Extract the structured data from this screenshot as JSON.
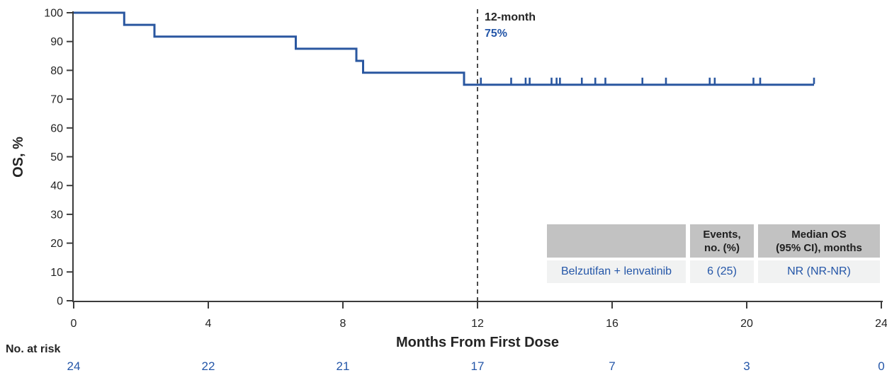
{
  "colors": {
    "line_blue": "#2a57a0",
    "text_blue": "#2456a8",
    "axis_gray": "#3c3c3c",
    "table_header_bg": "#c2c2c2",
    "table_row_bg": "#f1f2f2"
  },
  "chart_data": {
    "type": "line",
    "subtype": "kaplan-meier-step",
    "title": "",
    "xlabel": "Months From First Dose",
    "ylabel": "OS, %",
    "xlim": [
      0,
      24
    ],
    "ylim": [
      0,
      100
    ],
    "xticks": [
      0,
      4,
      8,
      12,
      16,
      20,
      24
    ],
    "yticks": [
      0,
      10,
      20,
      30,
      40,
      50,
      60,
      70,
      80,
      90,
      100
    ],
    "grid": false,
    "legend_position": "none",
    "series": [
      {
        "name": "Belzutifan + lenvatinib",
        "color": "#2a57a0",
        "steps": [
          [
            0,
            100
          ],
          [
            1.5,
            100
          ],
          [
            1.5,
            95.8
          ],
          [
            2.4,
            95.8
          ],
          [
            2.4,
            91.7
          ],
          [
            6.6,
            91.7
          ],
          [
            6.6,
            87.5
          ],
          [
            8.4,
            87.5
          ],
          [
            8.4,
            83.3
          ],
          [
            8.6,
            83.3
          ],
          [
            8.6,
            79.2
          ],
          [
            11.6,
            79.2
          ],
          [
            11.6,
            75
          ],
          [
            22,
            75
          ]
        ],
        "censor_marks_x": [
          12.1,
          13.0,
          13.43,
          13.55,
          14.2,
          14.35,
          14.45,
          15.1,
          15.5,
          15.8,
          16.9,
          17.6,
          18.9,
          19.05,
          20.2,
          20.4,
          22.0
        ],
        "censor_y": 75
      }
    ],
    "reference_line": {
      "x": 12,
      "label_line1": "12-month",
      "label_line2": "75%"
    }
  },
  "no_at_risk": {
    "label": "No. at risk",
    "values": [
      "24",
      "22",
      "21",
      "17",
      "7",
      "3",
      "0"
    ]
  },
  "table": {
    "headers": [
      [
        ""
      ],
      [
        "Events,",
        "no. (%)"
      ],
      [
        "Median OS",
        "(95% CI), months"
      ]
    ],
    "rows": [
      [
        "Belzutifan + lenvatinib",
        "6 (25)",
        "NR (NR-NR)"
      ]
    ]
  }
}
